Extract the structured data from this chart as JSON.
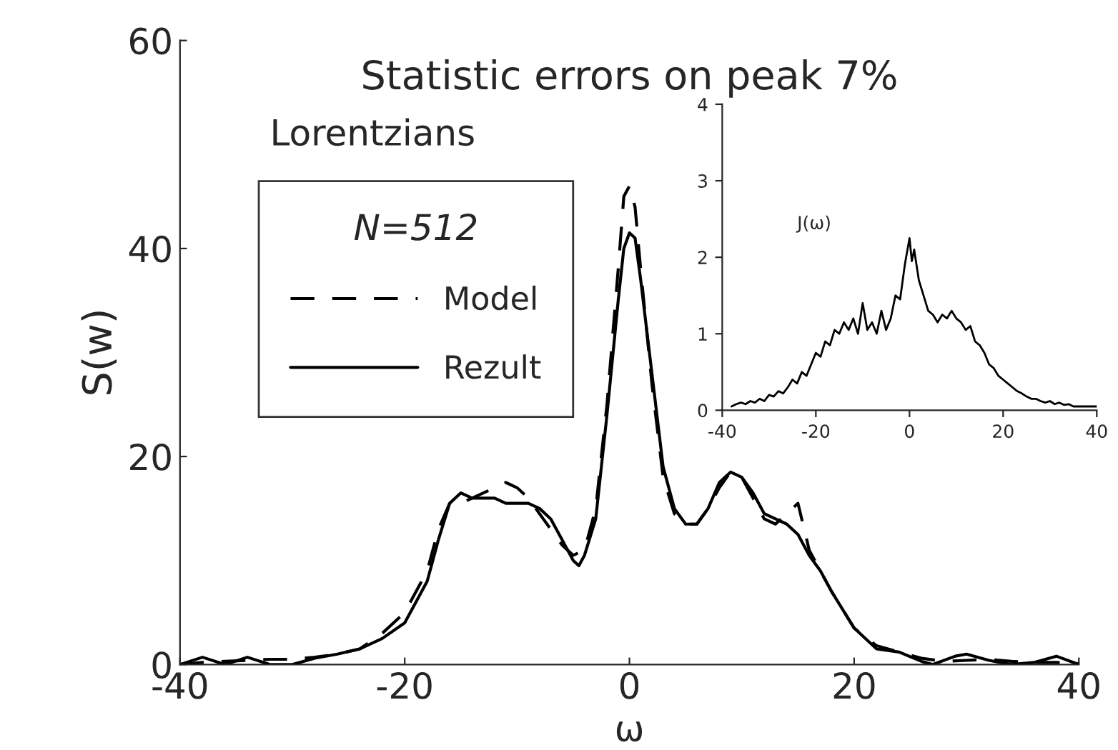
{
  "chart_data": [
    {
      "type": "line",
      "title": "Statistic errors on peak 7%",
      "xlabel": "ω",
      "ylabel": "S(w)",
      "legend_title": "N=512",
      "annotations": [
        "Lorentzians"
      ],
      "xlim": [
        -40,
        40
      ],
      "xticks": [
        -40,
        -20,
        0,
        20,
        40
      ],
      "ylim": [
        0,
        60
      ],
      "yticks": [
        0,
        20,
        40,
        60
      ],
      "grid": false,
      "legend": "left",
      "marker": "none",
      "series": [
        {
          "name": "Model",
          "color": "#000000",
          "line_style": "dashed",
          "x": [
            -40,
            -38,
            -36,
            -34,
            -32,
            -30,
            -28,
            -26,
            -24,
            -22,
            -20,
            -18,
            -17,
            -16,
            -15,
            -14,
            -13,
            -12,
            -11,
            -10,
            -9,
            -8,
            -7,
            -6,
            -5,
            -4,
            -3,
            -2,
            -1,
            -0.5,
            0,
            0.5,
            1,
            2,
            3,
            4,
            5,
            6,
            7,
            8,
            9,
            10,
            11,
            12,
            13,
            14,
            15,
            16,
            17,
            18,
            20,
            22,
            24,
            26,
            28,
            30,
            32,
            34,
            36,
            38,
            40
          ],
          "values": [
            0,
            0.2,
            0.3,
            0.4,
            0.5,
            0.5,
            0.7,
            1,
            1.5,
            3,
            5,
            9,
            13,
            15.5,
            15.5,
            16,
            16.5,
            17,
            17.5,
            17,
            16,
            14.5,
            13,
            11.5,
            10.5,
            11,
            15,
            25,
            38,
            45,
            46,
            44,
            38,
            27,
            18,
            14.5,
            13.5,
            13.5,
            15,
            17,
            18.5,
            18,
            16,
            14,
            13.5,
            14.5,
            15.5,
            11,
            9,
            7,
            3.5,
            1.8,
            1.2,
            0.6,
            0.3,
            0.4,
            0.5,
            0.3,
            0.2,
            0.2,
            0.1
          ]
        },
        {
          "name": "Rezult",
          "color": "#000000",
          "line_style": "solid",
          "x": [
            -40,
            -38,
            -36,
            -34,
            -32,
            -30,
            -28,
            -26,
            -24,
            -22,
            -20,
            -18,
            -17,
            -16,
            -15,
            -14,
            -13,
            -12,
            -11,
            -10,
            -9,
            -8,
            -7,
            -6,
            -5,
            -4.5,
            -4,
            -3,
            -2,
            -1,
            -0.5,
            0,
            0.5,
            1,
            2,
            3,
            4,
            5,
            6,
            7,
            8,
            9,
            10,
            11,
            12,
            13,
            14,
            15,
            16,
            17,
            18,
            20,
            22,
            24,
            26,
            27,
            29,
            30,
            32,
            34,
            36,
            38,
            40
          ],
          "values": [
            0,
            0.7,
            0,
            0.7,
            0,
            0,
            0.6,
            1,
            1.5,
            2.5,
            4,
            8,
            12,
            15.5,
            16.5,
            16,
            16,
            16,
            15.5,
            15.5,
            15.5,
            15,
            14,
            12,
            10,
            9.5,
            10.5,
            14,
            24,
            35,
            40,
            41.5,
            41,
            37,
            28,
            19,
            15,
            13.5,
            13.5,
            15,
            17.5,
            18.5,
            18,
            16.5,
            14.5,
            14,
            13.5,
            12.5,
            10.5,
            9,
            7,
            3.5,
            1.5,
            1.2,
            0.3,
            0,
            0.8,
            1,
            0.4,
            0,
            0.2,
            0.8,
            0
          ]
        }
      ]
    },
    {
      "type": "line",
      "annotations": [
        "J(ω)"
      ],
      "xlim": [
        -40,
        40
      ],
      "xticks": [
        -40,
        -20,
        0,
        20,
        40
      ],
      "ylim": [
        0,
        4
      ],
      "yticks": [
        0,
        1,
        2,
        3,
        4
      ],
      "grid": false,
      "marker": "none",
      "series": [
        {
          "color": "#000000",
          "line_style": "solid",
          "x": [
            -38,
            -37,
            -36,
            -35,
            -34,
            -33,
            -32,
            -31,
            -30,
            -29,
            -28,
            -27,
            -26,
            -25,
            -24,
            -23,
            -22,
            -21,
            -20,
            -19,
            -18,
            -17,
            -16,
            -15,
            -14,
            -13,
            -12,
            -11,
            -10,
            -9,
            -8,
            -7,
            -6,
            -5,
            -4,
            -3,
            -2,
            -1,
            0,
            0.5,
            1,
            2,
            3,
            4,
            5,
            6,
            7,
            8,
            9,
            10,
            11,
            12,
            13,
            14,
            15,
            16,
            17,
            18,
            19,
            20,
            21,
            22,
            23,
            24,
            25,
            26,
            27,
            28,
            29,
            30,
            31,
            32,
            33,
            34,
            35,
            36,
            38,
            40
          ],
          "values": [
            0.05,
            0.08,
            0.1,
            0.08,
            0.12,
            0.1,
            0.15,
            0.12,
            0.2,
            0.18,
            0.25,
            0.22,
            0.3,
            0.4,
            0.35,
            0.5,
            0.45,
            0.6,
            0.75,
            0.7,
            0.9,
            0.85,
            1.05,
            1.0,
            1.15,
            1.05,
            1.2,
            1.0,
            1.4,
            1.05,
            1.15,
            1.0,
            1.3,
            1.05,
            1.2,
            1.5,
            1.45,
            1.9,
            2.25,
            1.95,
            2.1,
            1.7,
            1.5,
            1.3,
            1.25,
            1.15,
            1.25,
            1.2,
            1.3,
            1.2,
            1.15,
            1.05,
            1.1,
            0.9,
            0.85,
            0.75,
            0.6,
            0.55,
            0.45,
            0.4,
            0.35,
            0.3,
            0.25,
            0.22,
            0.18,
            0.15,
            0.15,
            0.12,
            0.1,
            0.12,
            0.08,
            0.1,
            0.07,
            0.08,
            0.05,
            0.05,
            0.05,
            0.05
          ]
        }
      ]
    }
  ]
}
